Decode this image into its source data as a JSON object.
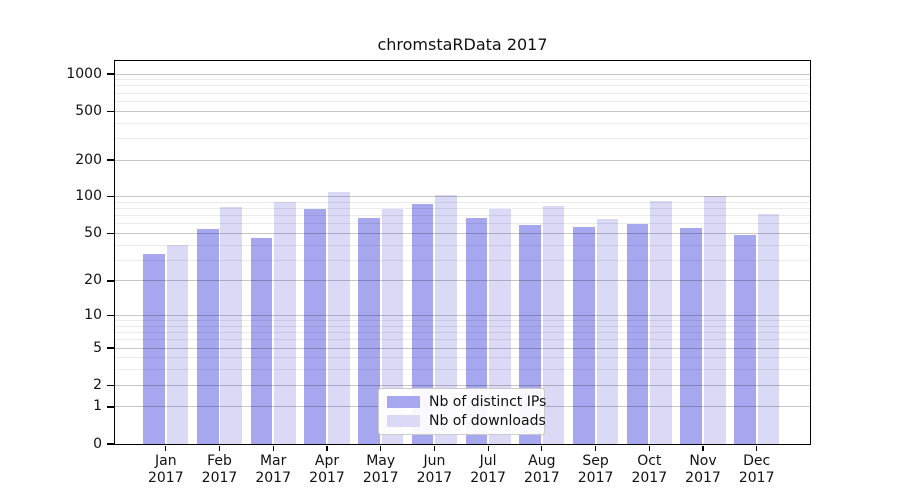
{
  "chart_data": {
    "type": "bar",
    "title": "chromstaRData 2017",
    "categories": [
      "Jan 2017",
      "Feb 2017",
      "Mar 2017",
      "Apr 2017",
      "May 2017",
      "Jun 2017",
      "Jul 2017",
      "Aug 2017",
      "Sep 2017",
      "Oct 2017",
      "Nov 2017",
      "Dec 2017"
    ],
    "series": [
      {
        "name": "Nb of distinct IPs",
        "color": "#a7a7f0",
        "values": [
          34,
          54,
          46,
          80,
          67,
          88,
          67,
          59,
          57,
          60,
          55,
          49
        ]
      },
      {
        "name": "Nb of downloads",
        "color": "#dadaf7",
        "values": [
          40,
          82,
          90,
          110,
          79,
          103,
          80,
          84,
          66,
          93,
          102,
          72
        ]
      }
    ],
    "xlabel": "",
    "ylabel": "",
    "y_axis": {
      "scale": "log(value+1)",
      "major_ticks": [
        0,
        1,
        2,
        5,
        10,
        20,
        50,
        100,
        200,
        500,
        1000
      ],
      "minor_gridlines": [
        3,
        4,
        6,
        7,
        8,
        9,
        30,
        40,
        60,
        70,
        80,
        90,
        300,
        400,
        600,
        700,
        800,
        900
      ],
      "ylim": [
        0,
        1275
      ]
    },
    "grid": true,
    "legend_position": "lower center"
  },
  "colors": {
    "bar_distinct_ips": "#a7a7f0",
    "bar_downloads": "#dadaf7",
    "axis": "#000000",
    "grid_major": "#c8c8c8",
    "grid_minor": "#ebebeb",
    "background": "#ffffff"
  }
}
